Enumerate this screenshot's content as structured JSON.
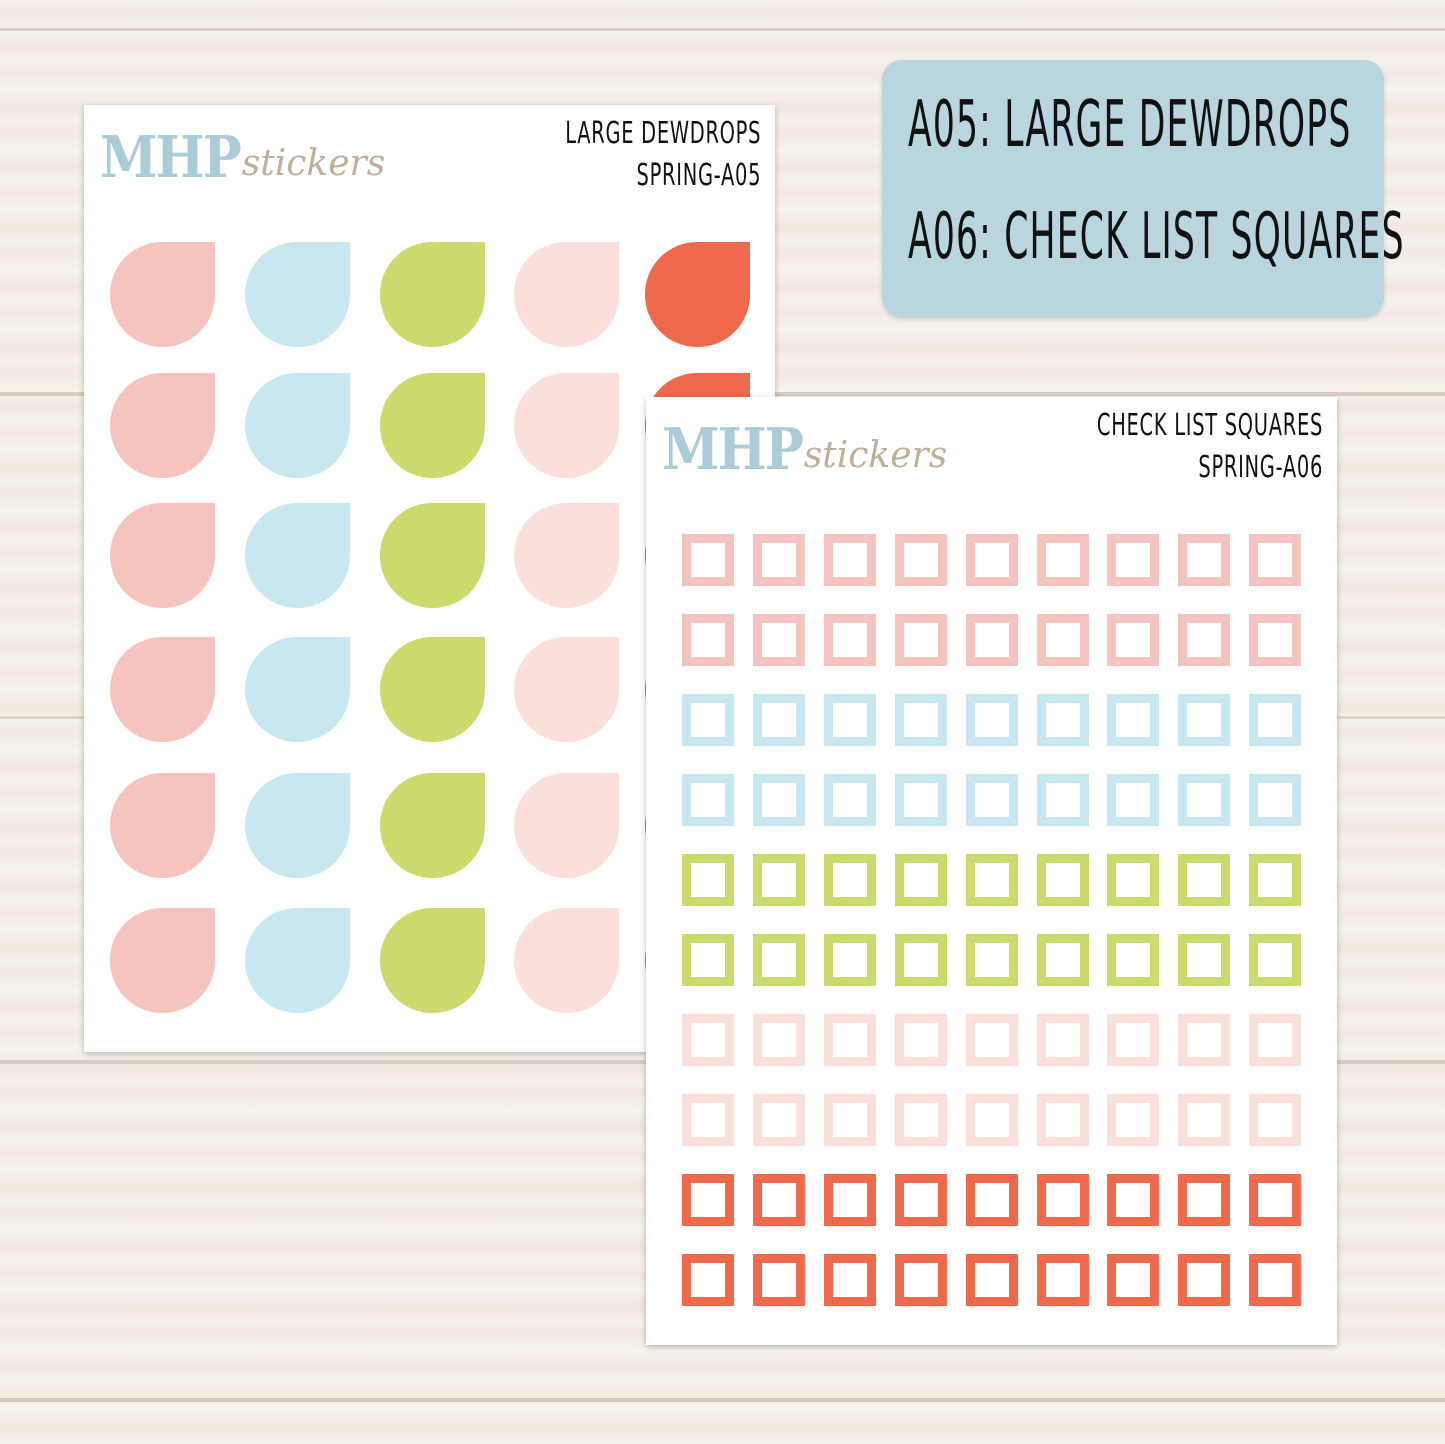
{
  "label": {
    "line1": "A05: LARGE DEWDROPS",
    "line2": "A06: CHECK LIST SQUARES",
    "background_color": "#b9d5dd"
  },
  "brand": {
    "part1": "MHP",
    "part2": "stickers"
  },
  "sheet_a": {
    "title": "LARGE DEWDROPS",
    "code": "SPRING-A05",
    "column_colors": [
      "#f6c4bf",
      "#c8e7f1",
      "#cdd96c",
      "#fbdfdb",
      "#ef6a4c"
    ],
    "rows": 6
  },
  "sheet_b": {
    "title": "CHECK LIST SQUARES",
    "code": "SPRING-A06",
    "row_colors": [
      "#f6c4bf",
      "#f6c4bf",
      "#c8e7f1",
      "#c8e7f1",
      "#cdd96c",
      "#cdd96c",
      "#fbdfdb",
      "#fbdfdb",
      "#ef6a4c",
      "#ef6a4c"
    ],
    "columns": 9
  }
}
